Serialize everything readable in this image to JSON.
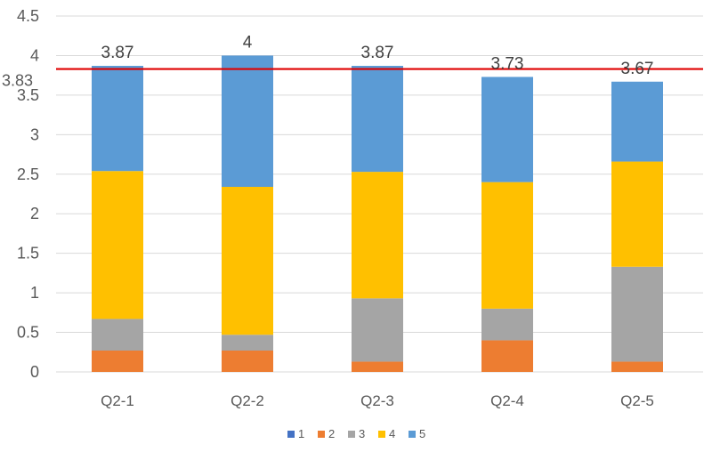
{
  "chart_data": {
    "type": "bar",
    "stacked": true,
    "categories": [
      "Q2-1",
      "Q2-2",
      "Q2-3",
      "Q2-4",
      "Q2-5"
    ],
    "series": [
      {
        "name": "1",
        "color": "#4472C4",
        "values": [
          0,
          0,
          0,
          0,
          0
        ]
      },
      {
        "name": "2",
        "color": "#ED7D31",
        "values": [
          0.27,
          0.27,
          0.13,
          0.4,
          0.13
        ]
      },
      {
        "name": "3",
        "color": "#A5A5A5",
        "values": [
          0.4,
          0.2,
          0.8,
          0.4,
          1.2
        ]
      },
      {
        "name": "4",
        "color": "#FFC000",
        "values": [
          1.87,
          1.87,
          1.6,
          1.6,
          1.33
        ]
      },
      {
        "name": "5",
        "color": "#5B9BD5",
        "values": [
          1.33,
          1.66,
          1.34,
          1.33,
          1.01
        ]
      }
    ],
    "totals": [
      "3.87",
      "4",
      "3.87",
      "3.73",
      "3.67"
    ],
    "reference_line": {
      "value": 3.83,
      "label": "3.83",
      "color": "#E00000"
    },
    "ylim": [
      0,
      4.5
    ],
    "yticks": [
      "0",
      "0.5",
      "1",
      "1.5",
      "2",
      "2.5",
      "3",
      "3.5",
      "4",
      "4.5"
    ],
    "grid": true,
    "legend": "bottom",
    "title": "",
    "xlabel": "",
    "ylabel": ""
  }
}
